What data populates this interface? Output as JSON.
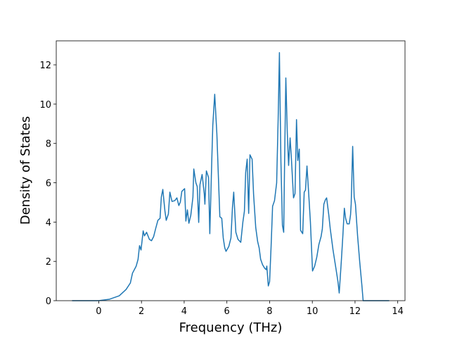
{
  "chart_data": {
    "type": "line",
    "x_label": "Frequency (THz)",
    "y_label": "Density of States",
    "color": "#1f77b4",
    "x": [
      -1.25,
      0,
      0.49,
      0.96,
      1.28,
      1.48,
      1.58,
      1.75,
      1.84,
      1.91,
      1.98,
      2.08,
      2.14,
      2.24,
      2.37,
      2.47,
      2.57,
      2.67,
      2.77,
      2.87,
      2.93,
      3.0,
      3.1,
      3.16,
      3.26,
      3.33,
      3.43,
      3.56,
      3.66,
      3.75,
      3.82,
      3.89,
      4.02,
      4.08,
      4.15,
      4.22,
      4.31,
      4.41,
      4.45,
      4.55,
      4.61,
      4.68,
      4.74,
      4.84,
      4.94,
      4.97,
      5.04,
      5.14,
      5.2,
      5.3,
      5.34,
      5.43,
      5.53,
      5.67,
      5.76,
      5.83,
      5.9,
      5.96,
      6.09,
      6.19,
      6.26,
      6.32,
      6.42,
      6.52,
      6.65,
      6.75,
      6.82,
      6.88,
      6.95,
      7.02,
      7.08,
      7.18,
      7.25,
      7.35,
      7.44,
      7.51,
      7.58,
      7.67,
      7.77,
      7.84,
      7.87,
      7.94,
      8.0,
      8.07,
      8.14,
      8.23,
      8.33,
      8.4,
      8.46,
      8.53,
      8.6,
      8.66,
      8.7,
      8.76,
      8.83,
      8.89,
      8.96,
      9.02,
      9.12,
      9.19,
      9.26,
      9.32,
      9.39,
      9.45,
      9.55,
      9.62,
      9.68,
      9.75,
      9.82,
      9.91,
      10.01,
      10.11,
      10.21,
      10.31,
      10.41,
      10.47,
      10.54,
      10.61,
      10.67,
      10.77,
      10.84,
      10.97,
      11.1,
      11.2,
      11.26,
      11.36,
      11.43,
      11.5,
      11.56,
      11.63,
      11.73,
      11.79,
      11.82,
      11.89,
      11.96,
      12.02,
      12.12,
      12.22,
      12.32,
      12.38,
      13.6
    ],
    "values": [
      0,
      0,
      0.07,
      0.25,
      0.57,
      0.9,
      1.4,
      1.75,
      2.1,
      2.8,
      2.58,
      3.55,
      3.3,
      3.48,
      3.12,
      3.05,
      3.26,
      3.69,
      4.09,
      4.19,
      5.27,
      5.66,
      4.55,
      4.09,
      4.41,
      5.52,
      5.05,
      5.09,
      5.23,
      4.84,
      5.02,
      5.56,
      5.7,
      4.05,
      4.62,
      3.94,
      4.34,
      5.27,
      6.7,
      5.99,
      5.81,
      3.98,
      5.91,
      6.42,
      5.45,
      4.91,
      6.6,
      6.27,
      3.41,
      7.42,
      8.92,
      10.5,
      8.5,
      4.27,
      4.19,
      3.19,
      2.69,
      2.51,
      2.76,
      3.19,
      4.73,
      5.52,
      3.48,
      3.12,
      2.97,
      4.01,
      4.55,
      6.52,
      7.2,
      4.44,
      7.42,
      7.2,
      5.41,
      3.73,
      3.01,
      2.69,
      2.11,
      1.83,
      1.65,
      1.58,
      1.76,
      0.75,
      0.97,
      2.76,
      4.8,
      5.09,
      5.99,
      9.21,
      12.62,
      7.06,
      3.84,
      3.48,
      6.88,
      11.33,
      8.49,
      6.88,
      8.28,
      7.24,
      5.23,
      5.45,
      9.21,
      7.13,
      7.71,
      3.58,
      3.41,
      5.52,
      5.63,
      6.85,
      5.63,
      4.01,
      1.51,
      1.76,
      2.22,
      2.87,
      3.26,
      3.66,
      4.91,
      5.13,
      5.23,
      4.37,
      3.66,
      2.58,
      1.68,
      0.97,
      0.39,
      2.04,
      3.3,
      4.7,
      4.19,
      3.91,
      3.91,
      4.37,
      4.91,
      7.85,
      5.27,
      4.91,
      3.3,
      1.97,
      0.79,
      0,
      0
    ],
    "xlim": [
      -1.99,
      14.34
    ],
    "xticks": [
      0,
      2,
      4,
      6,
      8,
      10,
      12,
      14
    ],
    "ylim": [
      0,
      13.22
    ],
    "yticks": [
      0,
      2,
      4,
      6,
      8,
      10,
      12
    ]
  }
}
